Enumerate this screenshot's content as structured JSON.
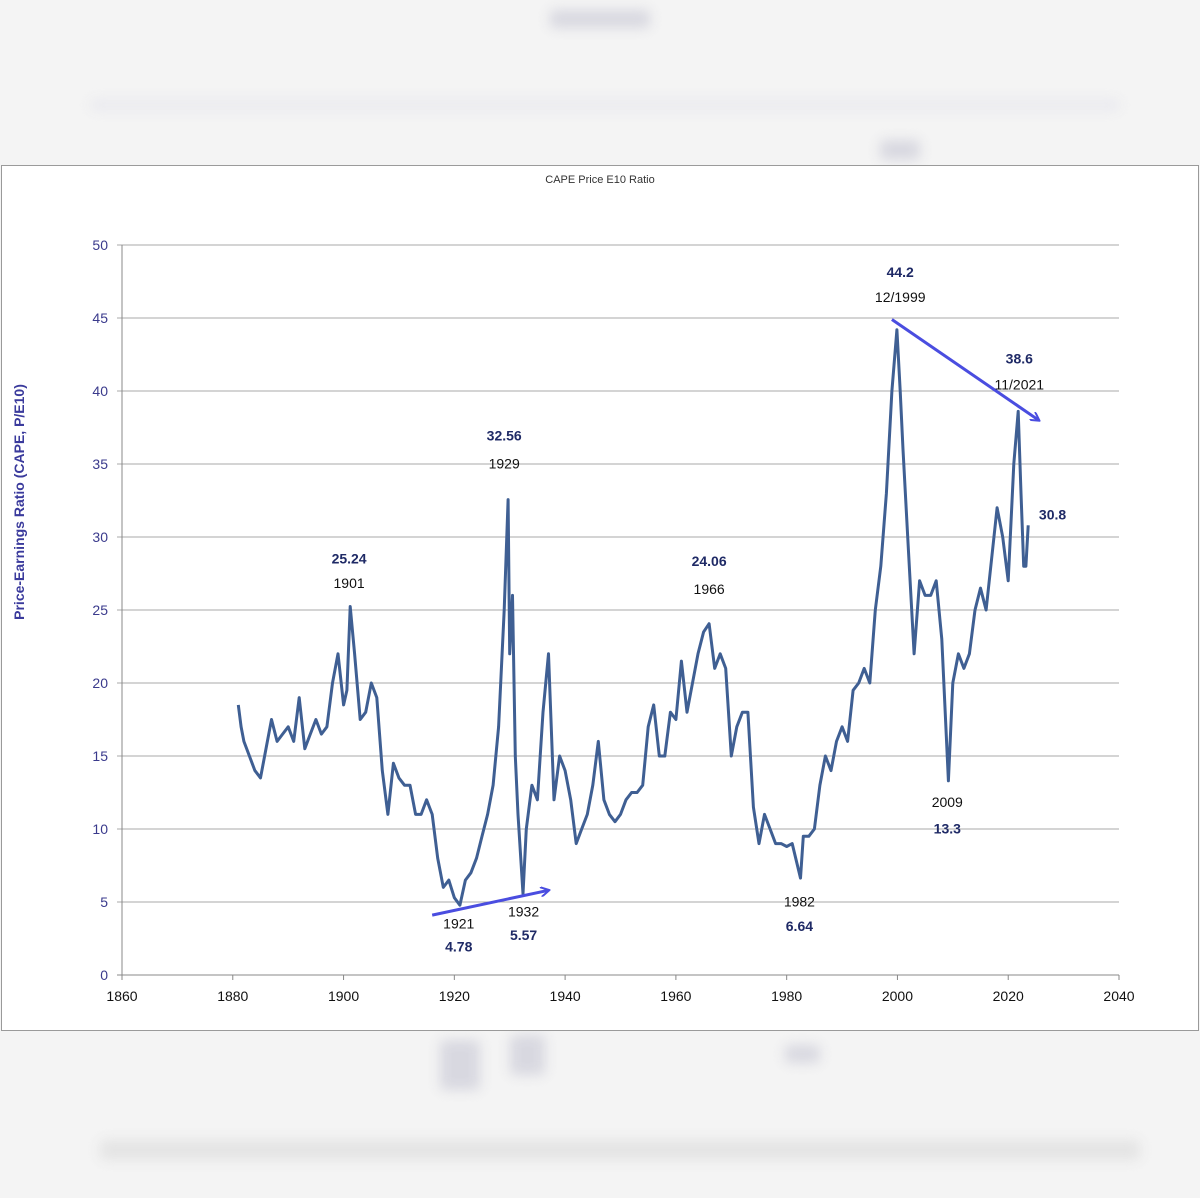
{
  "chart_data": {
    "type": "line",
    "title": "CAPE Price E10 Ratio",
    "xlabel": "",
    "ylabel": "Price-Earnings Ratio (CAPE, P/E10)",
    "xlim": [
      1860,
      2040
    ],
    "ylim": [
      0,
      50
    ],
    "xticks": [
      1860,
      1880,
      1900,
      1920,
      1940,
      1960,
      1980,
      2000,
      2020,
      2040
    ],
    "yticks": [
      0,
      5,
      10,
      15,
      20,
      25,
      30,
      35,
      40,
      45,
      50
    ],
    "grid": "horizontal",
    "line_color": "#3f5f93",
    "arrow_color": "#4a4de0",
    "series": [
      {
        "x": [
          1881,
          1881.5,
          1882,
          1883,
          1884,
          1885,
          1886,
          1887,
          1888,
          1889,
          1890,
          1891,
          1892,
          1893,
          1894,
          1895,
          1896,
          1897,
          1898,
          1899,
          1900,
          1900.6,
          1901.2,
          1902,
          1903,
          1904,
          1905,
          1906,
          1907,
          1908,
          1909,
          1910,
          1911,
          1912,
          1913,
          1914,
          1915,
          1916,
          1917,
          1918,
          1919,
          1920,
          1921,
          1922,
          1923,
          1924,
          1925,
          1926,
          1927,
          1928,
          1929,
          1929.7,
          1930,
          1930.5,
          1931,
          1931.5,
          1932.4,
          1933,
          1934,
          1935,
          1936,
          1937,
          1938,
          1939,
          1940,
          1941,
          1942,
          1943,
          1944,
          1945,
          1946,
          1947,
          1948,
          1949,
          1950,
          1951,
          1952,
          1953,
          1954,
          1955,
          1956,
          1957,
          1958,
          1959,
          1960,
          1961,
          1962,
          1963,
          1964,
          1965,
          1966,
          1967,
          1968,
          1969,
          1970,
          1971,
          1972,
          1973,
          1974,
          1975,
          1976,
          1977,
          1978,
          1979,
          1980,
          1981,
          1982.5,
          1983,
          1984,
          1985,
          1986,
          1987,
          1988,
          1989,
          1990,
          1991,
          1992,
          1993,
          1994,
          1995,
          1996,
          1997,
          1998,
          1999,
          1999.9,
          2000.5,
          2001,
          2002,
          2003,
          2004,
          2005,
          2006,
          2007,
          2008,
          2009.2,
          2010,
          2011,
          2012,
          2013,
          2014,
          2015,
          2016,
          2017,
          2018,
          2019,
          2020,
          2021,
          2021.8,
          2022.3,
          2022.8,
          2023.2,
          2023.6
        ],
        "y": [
          18.5,
          17,
          16,
          15,
          14,
          13.5,
          15.5,
          17.5,
          16,
          16.5,
          17,
          16,
          19,
          15.5,
          16.5,
          17.5,
          16.5,
          17,
          20,
          22,
          18.5,
          19.5,
          25.24,
          22,
          17.5,
          18,
          20,
          19,
          14,
          11,
          14.5,
          13.5,
          13,
          13,
          11,
          11,
          12,
          11,
          8,
          6,
          6.5,
          5.3,
          4.78,
          6.5,
          7,
          8,
          9.5,
          11,
          13,
          17,
          25,
          32.56,
          22,
          26,
          15,
          11,
          5.57,
          10,
          13,
          12,
          18,
          22,
          12,
          15,
          14,
          12,
          9,
          10,
          11,
          13,
          16,
          12,
          11,
          10.5,
          11,
          12,
          12.5,
          12.5,
          13,
          17,
          18.5,
          15,
          15,
          18,
          17.5,
          21.5,
          18,
          20,
          22,
          23.5,
          24.06,
          21,
          22,
          21,
          15,
          17,
          18,
          18,
          11.5,
          9,
          11,
          10,
          9,
          9,
          8.8,
          9,
          6.64,
          9.5,
          9.5,
          10,
          13,
          15,
          14,
          16,
          17,
          16,
          19.5,
          20,
          21,
          20,
          25,
          28,
          33,
          40,
          44.2,
          40,
          36,
          29,
          22,
          27,
          26,
          26,
          27,
          23,
          13.3,
          20,
          22,
          21,
          22,
          25,
          26.5,
          25,
          28.5,
          32,
          30,
          27,
          35,
          38.6,
          33,
          28,
          28,
          30.8
        ]
      }
    ],
    "annotations": [
      {
        "value": "25.24",
        "date": "1901",
        "x": 1901,
        "value_y": 28.2,
        "date_y": 26.5
      },
      {
        "value": "32.56",
        "date": "1929",
        "x": 1929,
        "value_y": 36.6,
        "date_y": 34.7
      },
      {
        "value": "24.06",
        "date": "1966",
        "x": 1966,
        "value_y": 28.0,
        "date_y": 26.1
      },
      {
        "value": "44.2",
        "date": "12/1999",
        "x": 2000.5,
        "value_y": 47.8,
        "date_y": 46.1
      },
      {
        "value": "38.6",
        "date": "11/2021",
        "x": 2022,
        "value_y": 41.9,
        "date_y": 40.1
      },
      {
        "value": "30.8",
        "date": "",
        "x": 2028,
        "value_y": 31.2,
        "date_y": null
      },
      {
        "value": "4.78",
        "date": "1921",
        "x": 1920.8,
        "value_y": 1.6,
        "date_y": 3.2
      },
      {
        "value": "5.57",
        "date": "1932",
        "x": 1932.5,
        "value_y": 2.4,
        "date_y": 4.0
      },
      {
        "value": "6.64",
        "date": "1982",
        "x": 1982.3,
        "value_y": 3.0,
        "date_y": 4.7
      },
      {
        "value": "13.3",
        "date": "2009",
        "x": 2009,
        "value_y": 9.7,
        "date_y": 11.5
      }
    ],
    "arrows": [
      {
        "from": [
          1916,
          4.1
        ],
        "to": [
          1937,
          5.8
        ]
      },
      {
        "from": [
          1999,
          44.9
        ],
        "to": [
          2025.5,
          38.0
        ]
      }
    ]
  }
}
